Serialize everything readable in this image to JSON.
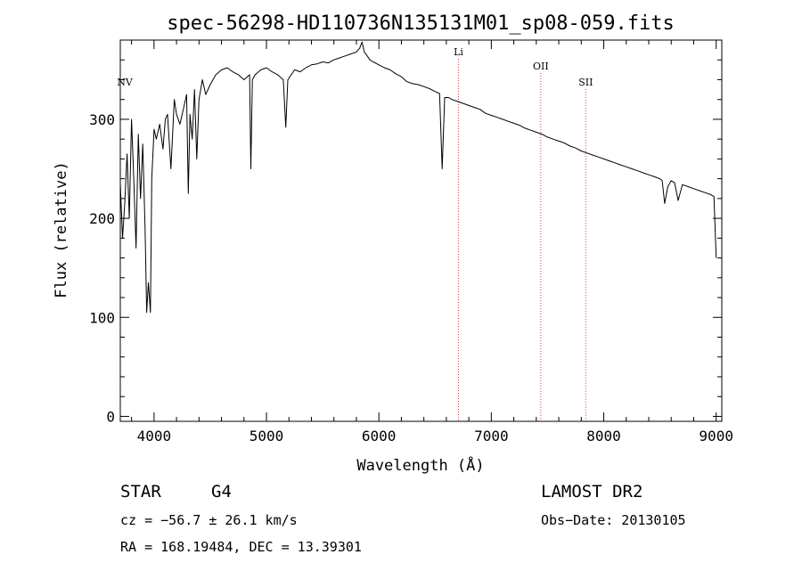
{
  "chart_data": {
    "type": "line",
    "title": "spec-56298-HD110736N135131M01_sp08-059.fits",
    "xlabel": "Wavelength (Å)",
    "ylabel": "Flux (relative)",
    "xlim": [
      3700,
      9050
    ],
    "ylim": [
      -5,
      380
    ],
    "xticks": [
      4000,
      5000,
      6000,
      7000,
      8000,
      9000
    ],
    "yticks": [
      0,
      100,
      200,
      300
    ],
    "grid": false,
    "series": [
      {
        "x": [
          3700,
          3720,
          3740,
          3760,
          3780,
          3800,
          3820,
          3840,
          3860,
          3880,
          3900,
          3920,
          3935,
          3950,
          3968,
          3980,
          4000,
          4020,
          4050,
          4080,
          4100,
          4120,
          4150,
          4180,
          4200,
          4230,
          4260,
          4290,
          4305,
          4320,
          4340,
          4360,
          4380,
          4400,
          4430,
          4460,
          4500,
          4550,
          4600,
          4650,
          4700,
          4750,
          4800,
          4850,
          4861,
          4875,
          4900,
          4950,
          5000,
          5050,
          5100,
          5150,
          5172,
          5190,
          5250,
          5300,
          5350,
          5400,
          5450,
          5500,
          5550,
          5600,
          5650,
          5700,
          5750,
          5800,
          5830,
          5850,
          5870,
          5890,
          5920,
          5950,
          6000,
          6050,
          6100,
          6150,
          6200,
          6250,
          6300,
          6350,
          6400,
          6450,
          6500,
          6540,
          6563,
          6585,
          6620,
          6650,
          6700,
          6750,
          6800,
          6850,
          6900,
          6950,
          7000,
          7050,
          7100,
          7150,
          7200,
          7250,
          7300,
          7350,
          7400,
          7450,
          7500,
          7550,
          7600,
          7650,
          7700,
          7750,
          7800,
          7850,
          7900,
          7950,
          8000,
          8050,
          8100,
          8150,
          8200,
          8250,
          8300,
          8350,
          8400,
          8450,
          8498,
          8520,
          8542,
          8570,
          8600,
          8630,
          8662,
          8700,
          8750,
          8800,
          8850,
          8900,
          8950,
          8980,
          9000
        ],
        "y": [
          235,
          180,
          215,
          265,
          200,
          300,
          240,
          170,
          285,
          220,
          275,
          190,
          105,
          135,
          105,
          240,
          290,
          280,
          295,
          270,
          300,
          305,
          250,
          320,
          305,
          295,
          310,
          325,
          225,
          305,
          280,
          330,
          260,
          320,
          340,
          325,
          335,
          345,
          350,
          352,
          348,
          345,
          340,
          345,
          250,
          340,
          345,
          350,
          352,
          348,
          345,
          340,
          292,
          340,
          350,
          348,
          352,
          355,
          356,
          358,
          357,
          360,
          362,
          364,
          366,
          368,
          372,
          378,
          368,
          365,
          360,
          358,
          355,
          352,
          350,
          346,
          343,
          338,
          336,
          335,
          333,
          331,
          328,
          326,
          250,
          322,
          322,
          320,
          318,
          316,
          314,
          312,
          310,
          306,
          304,
          302,
          300,
          298,
          296,
          294,
          291,
          289,
          287,
          285,
          282,
          280,
          278,
          276,
          273,
          271,
          268,
          266,
          264,
          262,
          260,
          258,
          256,
          254,
          252,
          250,
          248,
          246,
          244,
          242,
          240,
          238,
          215,
          232,
          238,
          236,
          218,
          234,
          232,
          230,
          228,
          226,
          224,
          222,
          160
        ]
      }
    ],
    "line_markers": [
      {
        "label": "NV",
        "x": 3740
      },
      {
        "label": "Li",
        "x": 6708
      },
      {
        "label": "OII",
        "x": 7440
      },
      {
        "label": "SII",
        "x": 7840
      }
    ]
  },
  "info": {
    "object_class": "STAR",
    "subclass": "G4",
    "survey": "LAMOST DR2",
    "redshift": "cz = −56.7 ± 26.1 km/s",
    "obs_date": "Obs−Date: 20130105",
    "coords": "RA = 168.19484, DEC =  13.39301"
  }
}
